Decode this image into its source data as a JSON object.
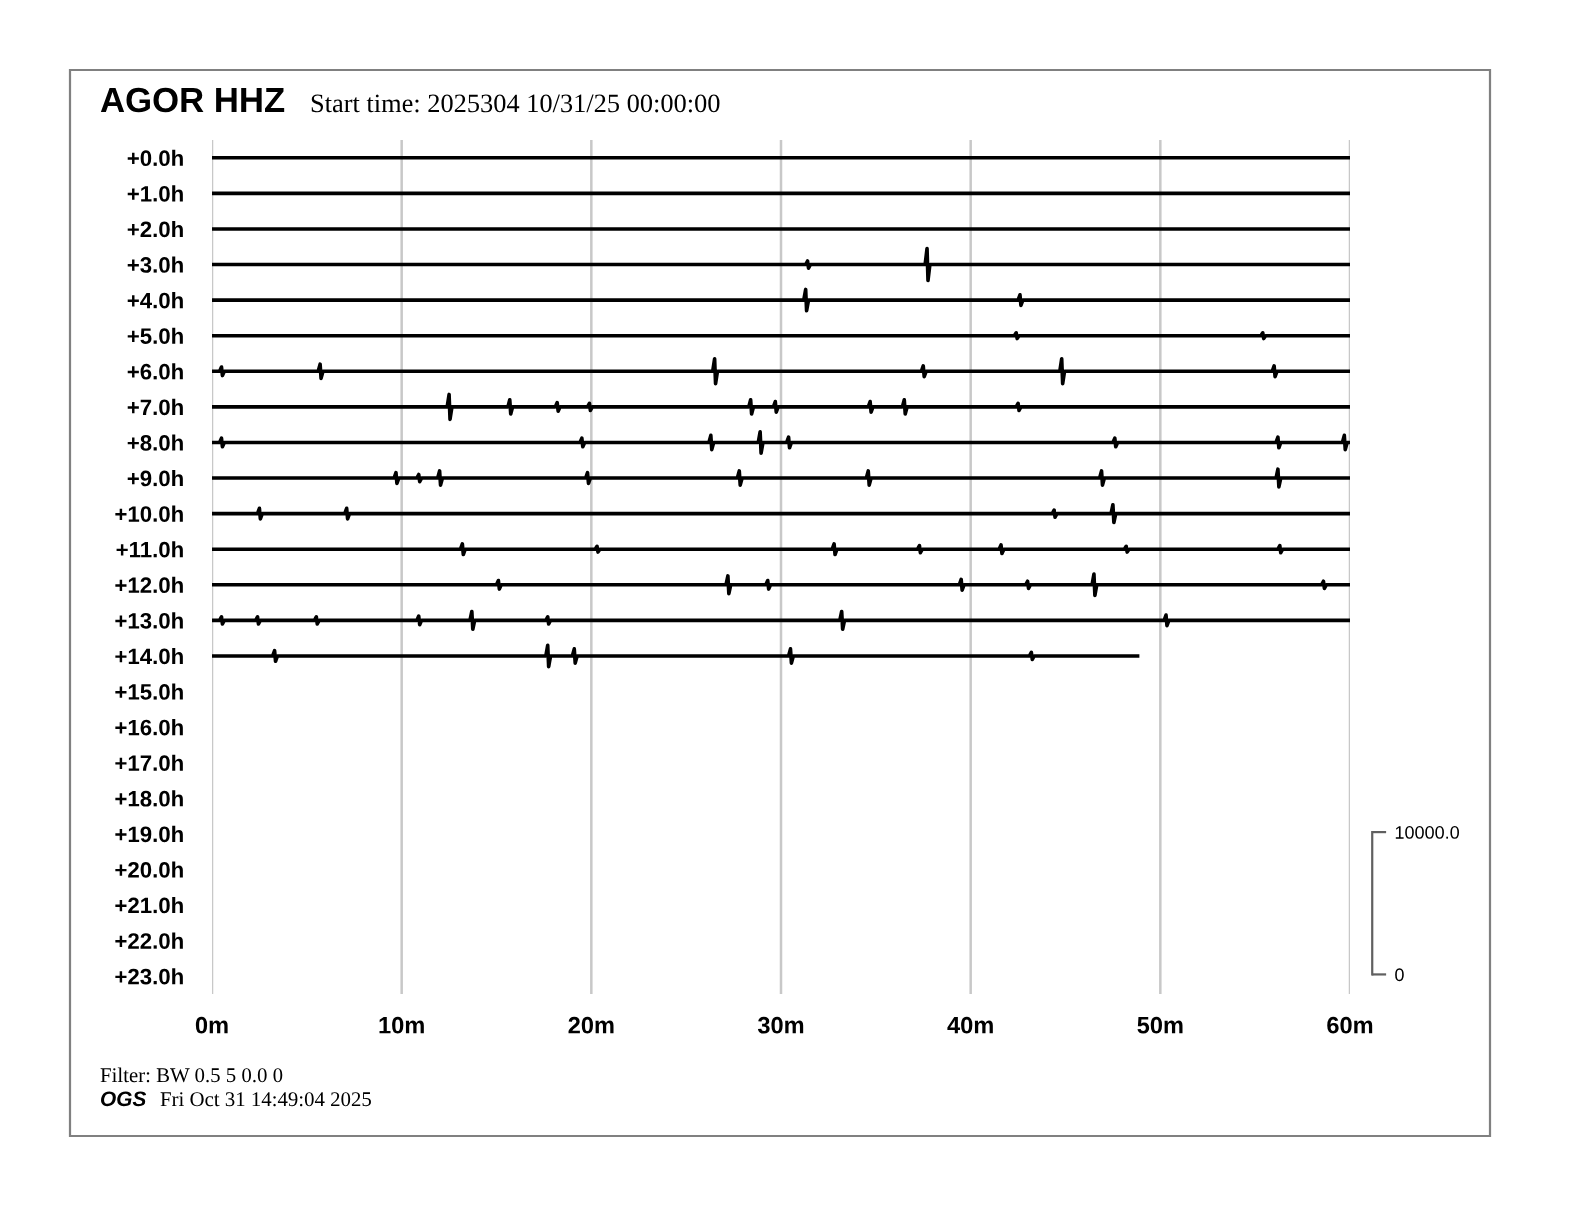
{
  "chart_data": {
    "type": "line",
    "title": "AGOR HHZ",
    "subtitle": "Start time: 2025304 10/31/25 00:00:00",
    "annotations": [
      "Filter: BW 0.5 5 0.0 0",
      "OGS",
      "Fri Oct 31 14:49:04 2025"
    ],
    "xlim": [
      0,
      60
    ],
    "xticks": [
      {
        "value": 0,
        "label": "0m"
      },
      {
        "value": 10,
        "label": "10m"
      },
      {
        "value": 20,
        "label": "20m"
      },
      {
        "value": 30,
        "label": "30m"
      },
      {
        "value": 40,
        "label": "40m"
      },
      {
        "value": 50,
        "label": "50m"
      },
      {
        "value": 60,
        "label": "60m"
      }
    ],
    "ylim": [
      23.5,
      -0.5
    ],
    "yticks": [
      {
        "value": 0,
        "label": "+0.0h"
      },
      {
        "value": 1,
        "label": "+1.0h"
      },
      {
        "value": 2,
        "label": "+2.0h"
      },
      {
        "value": 3,
        "label": "+3.0h"
      },
      {
        "value": 4,
        "label": "+4.0h"
      },
      {
        "value": 5,
        "label": "+5.0h"
      },
      {
        "value": 6,
        "label": "+6.0h"
      },
      {
        "value": 7,
        "label": "+7.0h"
      },
      {
        "value": 8,
        "label": "+8.0h"
      },
      {
        "value": 9,
        "label": "+9.0h"
      },
      {
        "value": 10,
        "label": "+10.0h"
      },
      {
        "value": 11,
        "label": "+11.0h"
      },
      {
        "value": 12,
        "label": "+12.0h"
      },
      {
        "value": 13,
        "label": "+13.0h"
      },
      {
        "value": 14,
        "label": "+14.0h"
      },
      {
        "value": 15,
        "label": "+15.0h"
      },
      {
        "value": 16,
        "label": "+16.0h"
      },
      {
        "value": 17,
        "label": "+17.0h"
      },
      {
        "value": 18,
        "label": "+18.0h"
      },
      {
        "value": 19,
        "label": "+19.0h"
      },
      {
        "value": 20,
        "label": "+20.0h"
      },
      {
        "value": 21,
        "label": "+21.0h"
      },
      {
        "value": 22,
        "label": "+22.0h"
      },
      {
        "value": 23,
        "label": "+23.0h"
      }
    ],
    "y2lim": [
      -1375,
      58625
    ],
    "y2ticks": [
      0,
      {
        "value": 10000,
        "label": "10000.0"
      }
    ],
    "grid": "x",
    "series": [
      {
        "color": "#000000",
        "x": [
          0,
          60
        ],
        "values": [
          0,
          0
        ]
      },
      {
        "color": "#000000",
        "x": [
          0,
          60
        ],
        "values": [
          1,
          1
        ]
      },
      {
        "color": "#000000",
        "x": [
          0,
          60
        ],
        "values": [
          2,
          2
        ]
      },
      {
        "color": "#000000",
        "x": [
          0,
          31.3,
          31.4,
          31.45,
          31.55,
          37.6,
          37.7,
          37.75,
          37.85,
          60
        ],
        "values": [
          3,
          3,
          2.9,
          3.1,
          3,
          3,
          2.55,
          3.45,
          3,
          3
        ]
      },
      {
        "color": "#000000",
        "x": [
          0,
          31.2,
          31.3,
          31.35,
          31.45,
          42.5,
          42.6,
          42.65,
          42.75,
          60
        ],
        "values": [
          4,
          4,
          3.7,
          4.3,
          4,
          4,
          3.85,
          4.15,
          4,
          4
        ]
      },
      {
        "color": "#000000",
        "x": [
          0,
          42.3,
          42.4,
          42.45,
          42.55,
          55.3,
          55.4,
          55.45,
          55.55,
          60
        ],
        "values": [
          5,
          5,
          4.92,
          5.08,
          5,
          5,
          4.92,
          5.08,
          5,
          5
        ]
      },
      {
        "color": "#000000",
        "x": [
          0,
          0.4,
          0.5,
          0.55,
          0.65,
          5.6,
          5.7,
          5.75,
          5.85,
          26.4,
          26.5,
          26.55,
          26.65,
          37.4,
          37.5,
          37.55,
          37.65,
          44.7,
          44.8,
          44.85,
          44.95,
          55.9,
          56,
          56.05,
          56.15,
          60
        ],
        "values": [
          6,
          6,
          5.88,
          6.12,
          6,
          6,
          5.8,
          6.2,
          6,
          6,
          5.65,
          6.35,
          6,
          6,
          5.85,
          6.15,
          6,
          6,
          5.65,
          6.35,
          6,
          6,
          5.85,
          6.15,
          6,
          6
        ]
      },
      {
        "color": "#000000",
        "x": [
          0,
          12.4,
          12.5,
          12.55,
          12.65,
          15.6,
          15.7,
          15.75,
          15.85,
          18.1,
          18.2,
          18.25,
          18.35,
          19.8,
          19.9,
          19.95,
          20.05,
          28.3,
          28.4,
          28.45,
          28.55,
          29.6,
          29.7,
          29.75,
          29.85,
          34.6,
          34.7,
          34.75,
          34.85,
          36.4,
          36.5,
          36.55,
          36.65,
          42.4,
          42.5,
          42.55,
          42.65,
          60
        ],
        "values": [
          7,
          7,
          6.65,
          7.35,
          7,
          7,
          6.8,
          7.2,
          7,
          7,
          6.88,
          7.12,
          7,
          7,
          6.9,
          7.1,
          7,
          7,
          6.8,
          7.2,
          7,
          7,
          6.85,
          7.15,
          7,
          7,
          6.85,
          7.15,
          7,
          7,
          6.8,
          7.2,
          7,
          7,
          6.9,
          7.1,
          7,
          7
        ]
      },
      {
        "color": "#000000",
        "x": [
          0,
          0.4,
          0.5,
          0.55,
          0.65,
          19.4,
          19.5,
          19.55,
          19.65,
          26.2,
          26.3,
          26.35,
          26.45,
          28.8,
          28.9,
          28.95,
          29.05,
          30.3,
          30.4,
          30.45,
          30.55,
          47.5,
          47.6,
          47.65,
          47.75,
          56.1,
          56.2,
          56.25,
          56.35,
          59.6,
          59.7,
          59.75,
          59.85,
          60
        ],
        "values": [
          8,
          8,
          7.88,
          8.12,
          8,
          8,
          7.88,
          8.12,
          8,
          8,
          7.8,
          8.2,
          8,
          8,
          7.7,
          8.3,
          8,
          8,
          7.85,
          8.15,
          8,
          8,
          7.88,
          8.12,
          8,
          8,
          7.85,
          8.15,
          8,
          8,
          7.8,
          8.2,
          8,
          8
        ]
      },
      {
        "color": "#000000",
        "x": [
          0,
          9.6,
          9.7,
          9.75,
          9.85,
          10.8,
          10.9,
          10.95,
          11.05,
          11.9,
          12,
          12.05,
          12.15,
          19.7,
          19.8,
          19.85,
          19.95,
          27.7,
          27.8,
          27.85,
          27.95,
          34.5,
          34.6,
          34.65,
          34.75,
          46.8,
          46.9,
          46.95,
          47.05,
          56.1,
          56.2,
          56.25,
          56.35,
          60
        ],
        "values": [
          9,
          9,
          8.85,
          9.15,
          9,
          9,
          8.9,
          9.1,
          9,
          9,
          8.8,
          9.2,
          9,
          9,
          8.85,
          9.15,
          9,
          9,
          8.8,
          9.2,
          9,
          9,
          8.8,
          9.2,
          9,
          9,
          8.8,
          9.2,
          9,
          9,
          8.75,
          9.25,
          9,
          9
        ]
      },
      {
        "color": "#000000",
        "x": [
          0,
          2.4,
          2.5,
          2.55,
          2.65,
          7,
          7.1,
          7.15,
          7.25,
          44.3,
          44.4,
          44.45,
          44.55,
          47.4,
          47.5,
          47.55,
          47.65,
          60
        ],
        "values": [
          10,
          10,
          9.85,
          10.15,
          10,
          10,
          9.85,
          10.15,
          10,
          10,
          9.9,
          10.1,
          10,
          10,
          9.75,
          10.25,
          10,
          10
        ]
      },
      {
        "color": "#000000",
        "x": [
          0,
          13.1,
          13.2,
          13.25,
          13.35,
          20.2,
          20.3,
          20.35,
          20.45,
          32.7,
          32.8,
          32.85,
          32.95,
          37.2,
          37.3,
          37.35,
          37.45,
          41.5,
          41.6,
          41.65,
          41.75,
          48.1,
          48.2,
          48.25,
          48.35,
          56.2,
          56.3,
          56.35,
          56.45,
          60
        ],
        "values": [
          11,
          11,
          10.85,
          11.15,
          11,
          11,
          10.92,
          11.08,
          11,
          11,
          10.85,
          11.15,
          11,
          11,
          10.9,
          11.1,
          11,
          11,
          10.88,
          11.12,
          11,
          11,
          10.92,
          11.08,
          11,
          11,
          10.9,
          11.1,
          11,
          11
        ]
      },
      {
        "color": "#000000",
        "x": [
          0,
          15,
          15.1,
          15.15,
          15.25,
          27.1,
          27.2,
          27.25,
          27.35,
          29.2,
          29.3,
          29.35,
          29.45,
          39.4,
          39.5,
          39.55,
          39.65,
          42.9,
          43,
          43.05,
          43.15,
          46.4,
          46.5,
          46.55,
          46.65,
          58.5,
          58.6,
          58.65,
          58.75,
          60
        ],
        "values": [
          12,
          12,
          11.88,
          12.12,
          12,
          12,
          11.75,
          12.25,
          12,
          12,
          11.88,
          12.12,
          12,
          12,
          11.85,
          12.15,
          12,
          12,
          11.9,
          12.1,
          12,
          12,
          11.7,
          12.3,
          12,
          12,
          11.9,
          12.1,
          12,
          12
        ]
      },
      {
        "color": "#000000",
        "x": [
          0,
          0.4,
          0.5,
          0.55,
          0.65,
          2.3,
          2.4,
          2.45,
          2.55,
          5.4,
          5.5,
          5.55,
          5.65,
          10.8,
          10.9,
          10.95,
          11.05,
          13.6,
          13.7,
          13.75,
          13.85,
          17.6,
          17.7,
          17.75,
          17.85,
          33.1,
          33.2,
          33.25,
          33.35,
          50.2,
          50.3,
          50.35,
          50.45,
          60
        ],
        "values": [
          13,
          13,
          12.9,
          13.1,
          13,
          13,
          12.9,
          13.1,
          13,
          13,
          12.9,
          13.1,
          13,
          13,
          12.88,
          13.12,
          13,
          13,
          12.75,
          13.25,
          13,
          13,
          12.9,
          13.1,
          13,
          13,
          12.75,
          13.25,
          13,
          13,
          12.85,
          13.15,
          13,
          13
        ]
      },
      {
        "color": "#000000",
        "x": [
          0,
          3.2,
          3.3,
          3.35,
          3.45,
          17.6,
          17.7,
          17.75,
          17.85,
          19,
          19.1,
          19.15,
          19.25,
          30.4,
          30.5,
          30.55,
          30.65,
          43.1,
          43.2,
          43.25,
          43.35,
          48.8
        ],
        "values": [
          14,
          14,
          13.85,
          14.15,
          14,
          14,
          13.7,
          14.3,
          14,
          14,
          13.8,
          14.2,
          14,
          14,
          13.8,
          14.2,
          14,
          14,
          13.9,
          14.1,
          14,
          14
        ]
      }
    ]
  }
}
